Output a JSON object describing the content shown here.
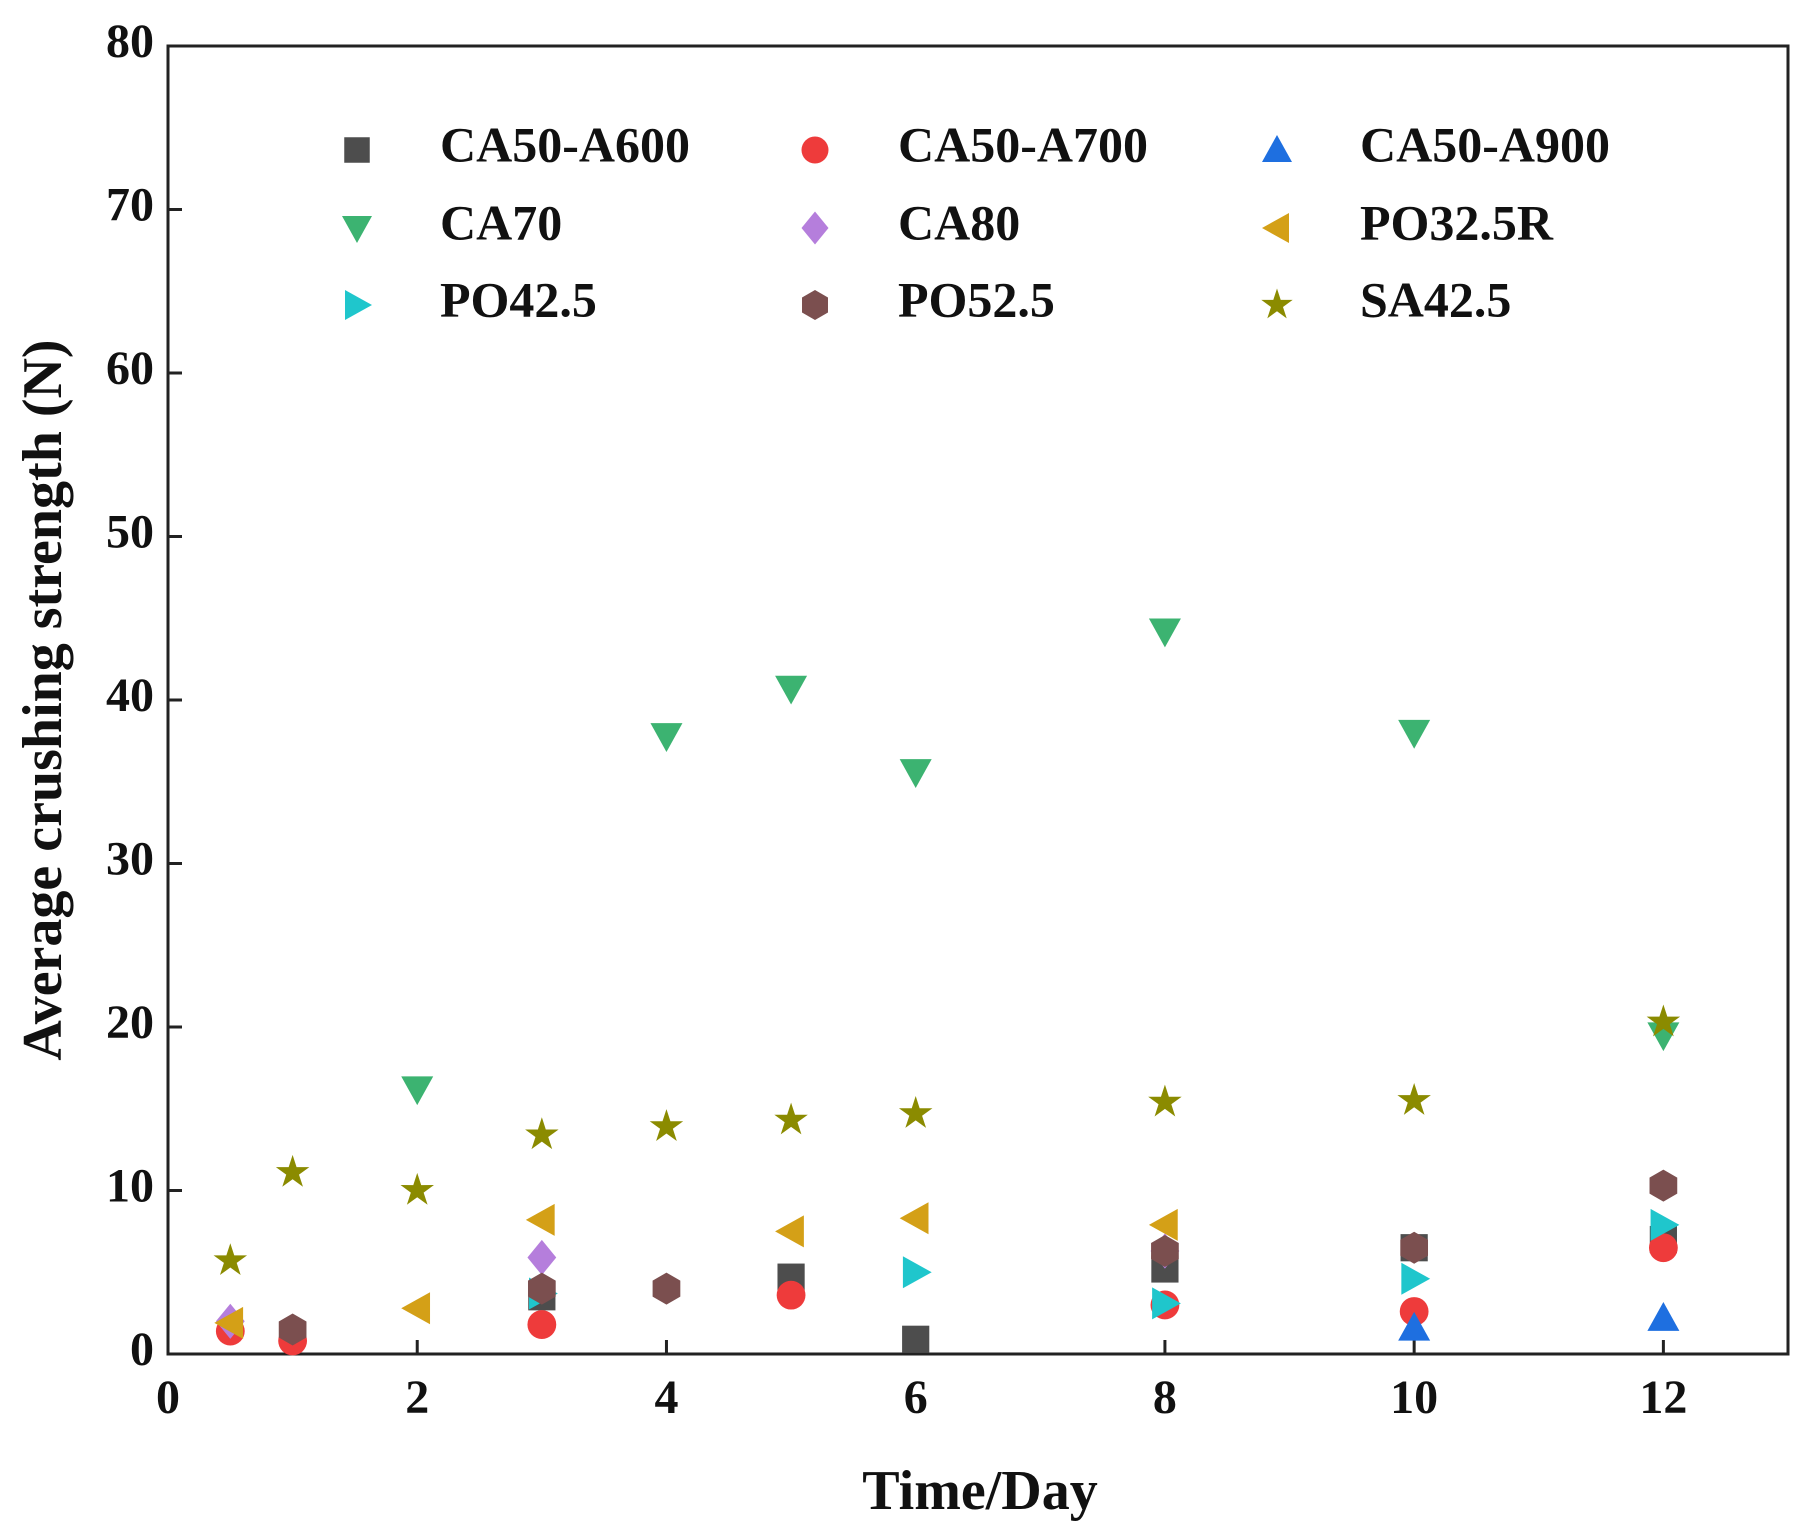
{
  "chart_data": {
    "type": "scatter",
    "x_label": "Time/Day",
    "y_label": "Average crushing strength  (N)",
    "xlim": [
      0,
      13
    ],
    "ylim": [
      0,
      80
    ],
    "xticks": [
      0,
      2,
      4,
      6,
      8,
      10,
      12
    ],
    "yticks": [
      0,
      10,
      20,
      30,
      40,
      50,
      60,
      70,
      80
    ],
    "legend": "top",
    "legend_columns": 3,
    "series": [
      {
        "name": "CA50-A600",
        "color": "#4d4d4d",
        "marker": "square",
        "x": [
          3,
          5,
          6,
          8,
          10,
          12
        ],
        "values": [
          3.5,
          4.7,
          0.9,
          5.2,
          6.5,
          7
        ]
      },
      {
        "name": "CA50-A700",
        "color": "#ee3b3b",
        "marker": "circle",
        "x": [
          0.5,
          1,
          3,
          5,
          8,
          10,
          12
        ],
        "values": [
          1.4,
          0.8,
          1.8,
          3.6,
          3.0,
          2.6,
          6.5
        ]
      },
      {
        "name": "CA50-A900",
        "color": "#1e6fe0",
        "marker": "triangle-up",
        "x": [
          10,
          12
        ],
        "values": [
          1.6,
          2.2
        ]
      },
      {
        "name": "CA70",
        "color": "#3cb371",
        "marker": "triangle-down",
        "x": [
          2,
          4,
          5,
          6,
          8,
          10,
          12
        ],
        "values": [
          16.2,
          37.8,
          40.7,
          35.6,
          44.2,
          38.0,
          19.5
        ]
      },
      {
        "name": "CA80",
        "color": "#b57edc",
        "marker": "diamond",
        "x": [
          0.5,
          3,
          8
        ],
        "values": [
          2.0,
          5.9,
          6.3
        ]
      },
      {
        "name": "PO32.5R",
        "color": "#d4a017",
        "marker": "triangle-left",
        "x": [
          0.5,
          2,
          3,
          5,
          6,
          8
        ],
        "values": [
          1.9,
          2.8,
          8.2,
          7.5,
          8.3,
          7.9
        ]
      },
      {
        "name": "PO42.5",
        "color": "#1fc6cc",
        "marker": "triangle-right",
        "x": [
          3,
          6,
          8,
          10,
          12
        ],
        "values": [
          3.7,
          5.0,
          3.1,
          4.6,
          7.9
        ]
      },
      {
        "name": "PO52.5",
        "color": "#7b4f4f",
        "marker": "hexagon",
        "x": [
          1,
          3,
          4,
          8,
          10,
          12
        ],
        "values": [
          1.5,
          4.0,
          4.0,
          6.3,
          6.5,
          10.3
        ]
      },
      {
        "name": "SA42.5",
        "color": "#8b8b00",
        "marker": "star",
        "x": [
          0.5,
          1,
          2,
          3,
          4,
          5,
          6,
          8,
          10,
          12
        ],
        "values": [
          5.7,
          11.1,
          10.0,
          13.4,
          13.9,
          14.3,
          14.7,
          15.4,
          15.5,
          20.3
        ]
      }
    ]
  }
}
